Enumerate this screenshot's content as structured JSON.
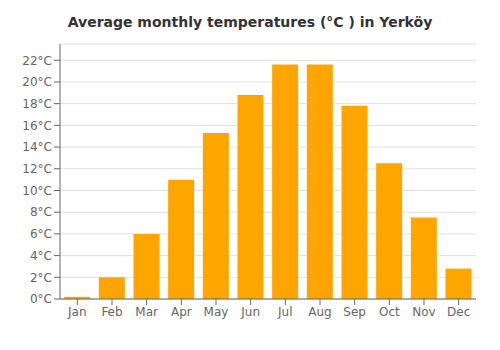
{
  "chart_data": {
    "type": "bar",
    "title": "Average monthly temperatures (°C ) in Yerköy",
    "categories": [
      "Jan",
      "Feb",
      "Mar",
      "Apr",
      "May",
      "Jun",
      "Jul",
      "Aug",
      "Sep",
      "Oct",
      "Nov",
      "Dec"
    ],
    "values": [
      0.2,
      2.0,
      6.0,
      11.0,
      15.3,
      18.8,
      21.6,
      21.6,
      17.8,
      12.5,
      7.5,
      2.8
    ],
    "color": "#FFA500",
    "ylim": [
      0,
      23.5
    ],
    "yticks": [
      {
        "value": 0,
        "label": "0°C"
      },
      {
        "value": 2,
        "label": "2°C"
      },
      {
        "value": 4,
        "label": "4°C"
      },
      {
        "value": 6,
        "label": "6°C"
      },
      {
        "value": 8,
        "label": "8°C"
      },
      {
        "value": 10,
        "label": "10°C"
      },
      {
        "value": 12,
        "label": "12°C"
      },
      {
        "value": 14,
        "label": "14°C"
      },
      {
        "value": 16,
        "label": "16°C"
      },
      {
        "value": 18,
        "label": "18°C"
      },
      {
        "value": 20,
        "label": "20°C"
      },
      {
        "value": 22,
        "label": "22°C"
      }
    ],
    "grid": true
  }
}
